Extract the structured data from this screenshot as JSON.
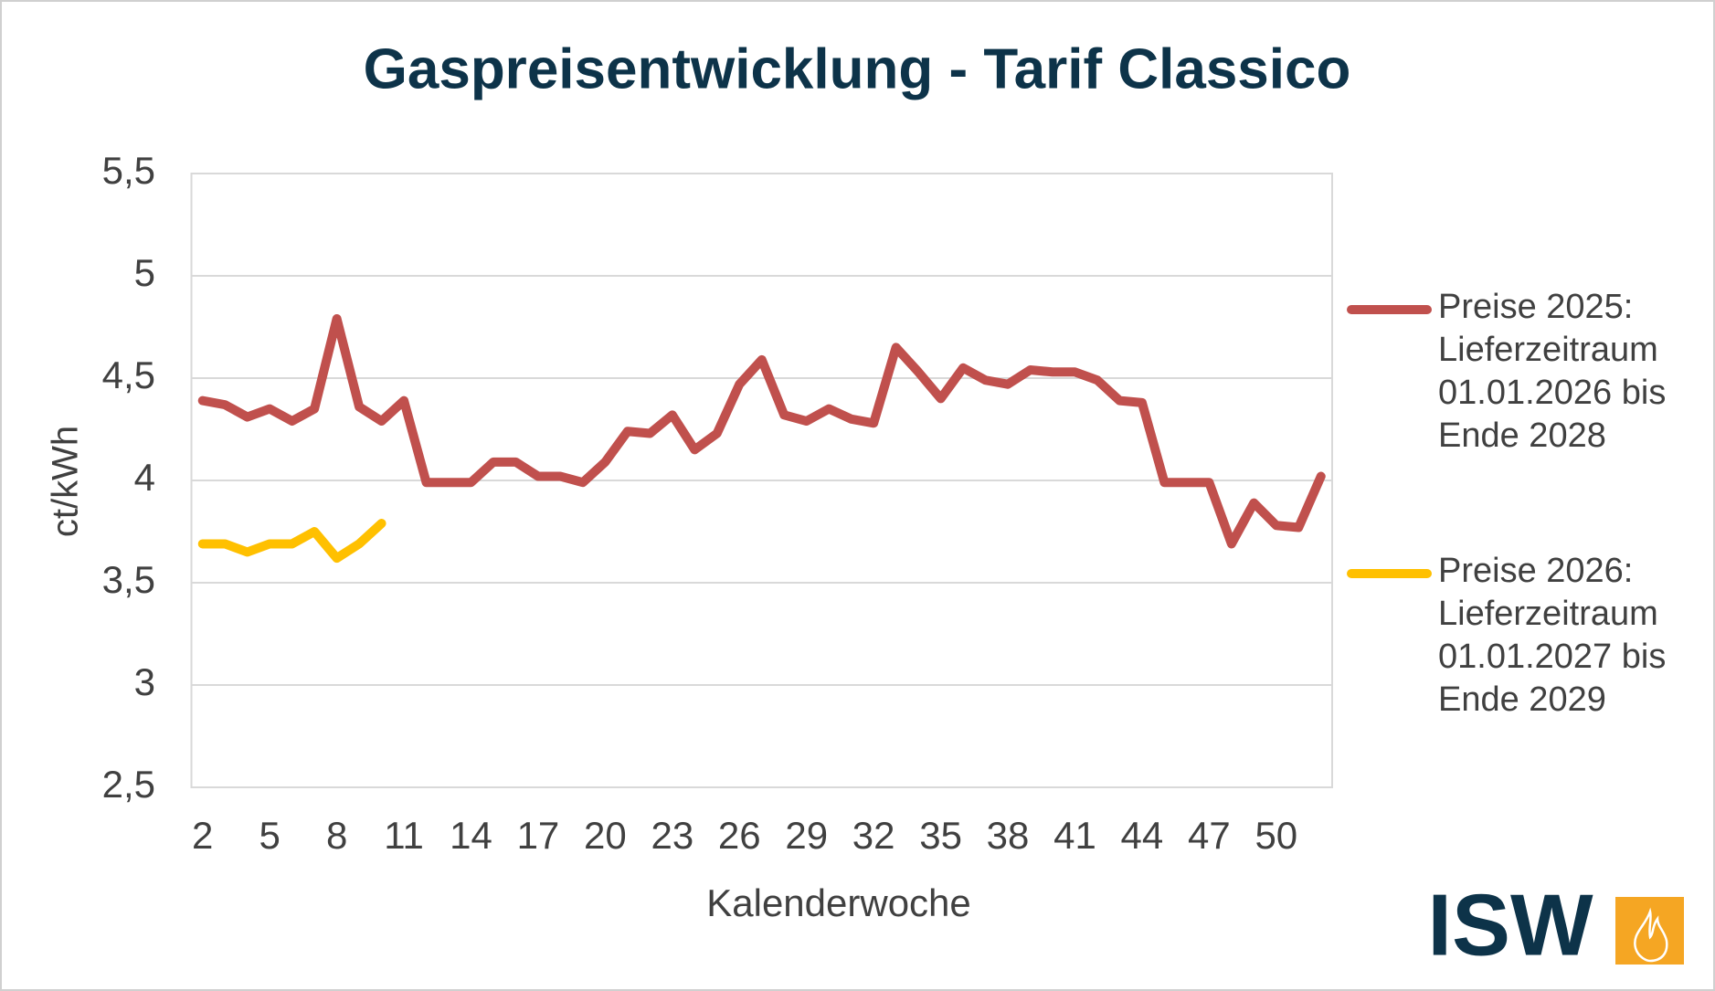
{
  "chart_data": {
    "type": "line",
    "title": "Gaspreisentwicklung - Tarif Classico",
    "x_label": "Kalenderwoche",
    "y_label": "ct/kWh",
    "x": [
      2,
      3,
      4,
      5,
      6,
      7,
      8,
      9,
      10,
      11,
      12,
      13,
      14,
      15,
      16,
      17,
      18,
      19,
      20,
      21,
      22,
      23,
      24,
      25,
      26,
      27,
      28,
      29,
      30,
      31,
      32,
      33,
      34,
      35,
      36,
      37,
      38,
      39,
      40,
      41,
      42,
      43,
      44,
      45,
      46,
      47,
      48,
      49,
      50,
      51,
      52
    ],
    "series": [
      {
        "name": "Preise 2025: Lieferzeitraum 01.01.2026 bis Ende 2028",
        "color": "#c0504d",
        "values": [
          4.39,
          4.37,
          4.31,
          4.35,
          4.29,
          4.35,
          4.79,
          4.36,
          4.29,
          4.39,
          3.99,
          3.99,
          3.99,
          4.09,
          4.09,
          4.02,
          4.02,
          3.99,
          4.09,
          4.24,
          4.23,
          4.32,
          4.15,
          4.23,
          4.47,
          4.59,
          4.32,
          4.29,
          4.35,
          4.3,
          4.28,
          4.65,
          4.53,
          4.4,
          4.55,
          4.49,
          4.47,
          4.54,
          4.53,
          4.53,
          4.49,
          4.39,
          4.38,
          3.99,
          3.99,
          3.99,
          3.69,
          3.89,
          3.78,
          3.77,
          4.02
        ]
      },
      {
        "name": "Preise 2026: Lieferzeitraum 01.01.2027 bis Ende 2029",
        "color": "#ffc000",
        "values": [
          3.69,
          3.69,
          3.65,
          3.69,
          3.69,
          3.75,
          3.62,
          3.69,
          3.79,
          null,
          null,
          null,
          null,
          null,
          null,
          null,
          null,
          null,
          null,
          null,
          null,
          null,
          null,
          null,
          null,
          null,
          null,
          null,
          null,
          null,
          null,
          null,
          null,
          null,
          null,
          null,
          null,
          null,
          null,
          null,
          null,
          null,
          null,
          null,
          null,
          null,
          null,
          null,
          null,
          null,
          null
        ]
      }
    ],
    "xlim": [
      1.5,
      52.5
    ],
    "xticks": [
      2,
      5,
      8,
      11,
      14,
      17,
      20,
      23,
      26,
      29,
      32,
      35,
      38,
      41,
      44,
      47,
      50
    ],
    "ylim": [
      2.5,
      5.5
    ],
    "yticks": [
      {
        "value": 2.5,
        "label": "2,5"
      },
      3,
      {
        "value": 3.5,
        "label": "3,5"
      },
      4,
      {
        "value": 4.5,
        "label": "4,5"
      },
      5,
      {
        "value": 5.5,
        "label": "5,5"
      }
    ],
    "grid": true,
    "legend": "right",
    "logo": "ISW"
  }
}
